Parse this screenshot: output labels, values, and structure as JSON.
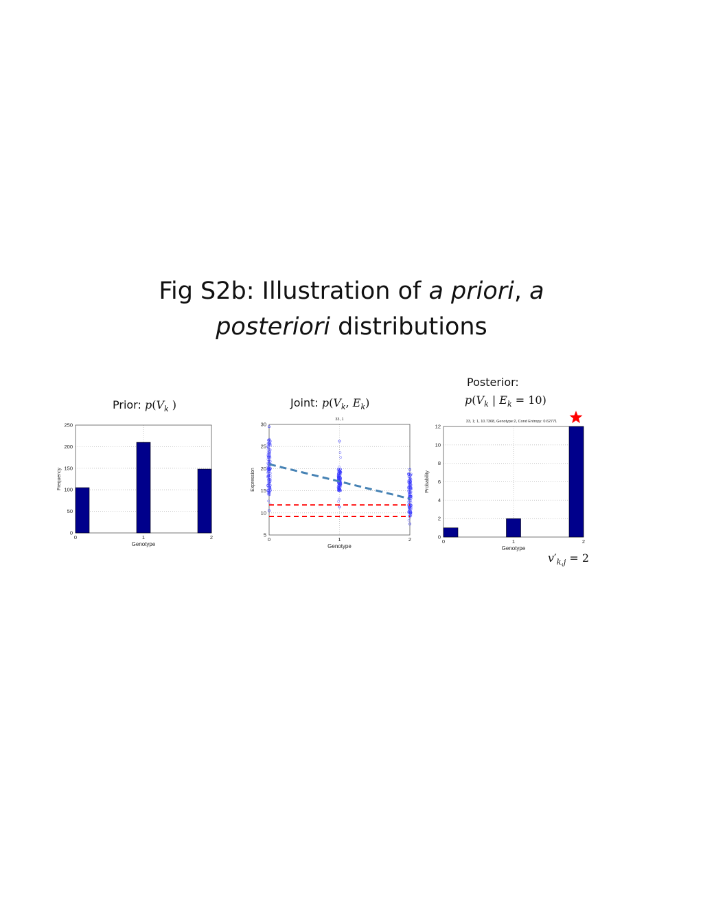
{
  "title": {
    "part1": "Fig S2b: Illustration of ",
    "italic1": "a priori",
    "part2": ", ",
    "italic2": "a",
    "italic3": "posteriori",
    "part3": " distributions"
  },
  "captions": {
    "prior": {
      "label": "Prior: ",
      "func": "p",
      "open": "(",
      "var": "V",
      "sub": "k",
      "close": " )"
    },
    "joint": {
      "label": "Joint: ",
      "func": "p",
      "open": "(",
      "var1": "V",
      "sub1": "k",
      "comma": ", ",
      "var2": "E",
      "sub2": "k",
      "close": ")"
    },
    "posterior": {
      "label": "Posterior:",
      "func": "p",
      "open": "(",
      "var1": "V",
      "sub1": "k",
      "bar": " | ",
      "var2": "E",
      "sub2": "k",
      "eq": " = 10)"
    },
    "result": {
      "var": "v",
      "prime": "′",
      "sub": "k,j",
      "eq": " = 2"
    }
  },
  "star": {
    "color": "#ff0000"
  },
  "chart_data": [
    {
      "id": "prior",
      "type": "bar",
      "title": "",
      "xlabel": "Genotype",
      "ylabel": "Frequency",
      "x": [
        0,
        1,
        2
      ],
      "values": [
        105,
        210,
        148
      ],
      "xlim": [
        0,
        2
      ],
      "ylim": [
        0,
        250
      ],
      "xticks": [
        "0",
        "1",
        "2"
      ],
      "yticks": [
        "0",
        "50",
        "100",
        "150",
        "200",
        "250"
      ],
      "grid": true,
      "bar_color": "#00008b"
    },
    {
      "id": "joint",
      "type": "scatter",
      "title": "33, 1",
      "xlabel": "Genotype",
      "ylabel": "Expression",
      "xlim": [
        0,
        2
      ],
      "ylim": [
        5,
        30
      ],
      "xticks": [
        "0",
        "1",
        "2"
      ],
      "yticks": [
        "5",
        "10",
        "15",
        "20",
        "25",
        "30"
      ],
      "grid": true,
      "point_color": "#3333ff",
      "groups": [
        {
          "x": 0,
          "y_min": 10.5,
          "y_max": 29.5,
          "dense_min": 14,
          "dense_max": 27
        },
        {
          "x": 1,
          "y_min": 11.3,
          "y_max": 26.2,
          "dense_min": 15,
          "dense_max": 20
        },
        {
          "x": 2,
          "y_min": 7.5,
          "y_max": 19.8,
          "dense_min": 9,
          "dense_max": 19
        }
      ],
      "regression": {
        "from": [
          0,
          21.0
        ],
        "to": [
          2,
          13.2
        ],
        "color": "#4682b4"
      },
      "thresholds": {
        "values": [
          11.8,
          9.2
        ],
        "color": "#ff0000"
      }
    },
    {
      "id": "posterior",
      "type": "bar",
      "title": "33, 1; 1, 10.7368, Genotype:2, Cond Entropy: 0.62771",
      "xlabel": "Genotype",
      "ylabel": "Probability",
      "x": [
        0,
        1,
        2
      ],
      "values": [
        1,
        2,
        12
      ],
      "xlim": [
        0,
        2
      ],
      "ylim": [
        0,
        12
      ],
      "xticks": [
        "0",
        "1",
        "2"
      ],
      "yticks": [
        "0",
        "2",
        "4",
        "6",
        "8",
        "10",
        "12"
      ],
      "grid": true,
      "bar_color": "#00008b"
    }
  ]
}
